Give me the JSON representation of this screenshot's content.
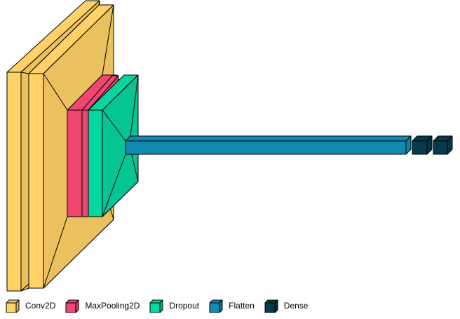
{
  "layer_types": [
    {
      "id": "conv2d",
      "name": "Conv2D",
      "color": "#FFD166"
    },
    {
      "id": "maxpool",
      "name": "MaxPooling2D",
      "color": "#EF476F"
    },
    {
      "id": "dropout",
      "name": "Dropout",
      "color": "#06D6A0"
    },
    {
      "id": "flatten",
      "name": "Flatten",
      "color": "#118AB2"
    },
    {
      "id": "dense",
      "name": "Dense",
      "color": "#073B4C"
    }
  ],
  "layers": [
    {
      "type": "conv2d"
    },
    {
      "type": "conv2d"
    },
    {
      "type": "maxpool"
    },
    {
      "type": "maxpool"
    },
    {
      "type": "dropout"
    },
    {
      "type": "flatten"
    },
    {
      "type": "dense"
    },
    {
      "type": "dense"
    }
  ]
}
